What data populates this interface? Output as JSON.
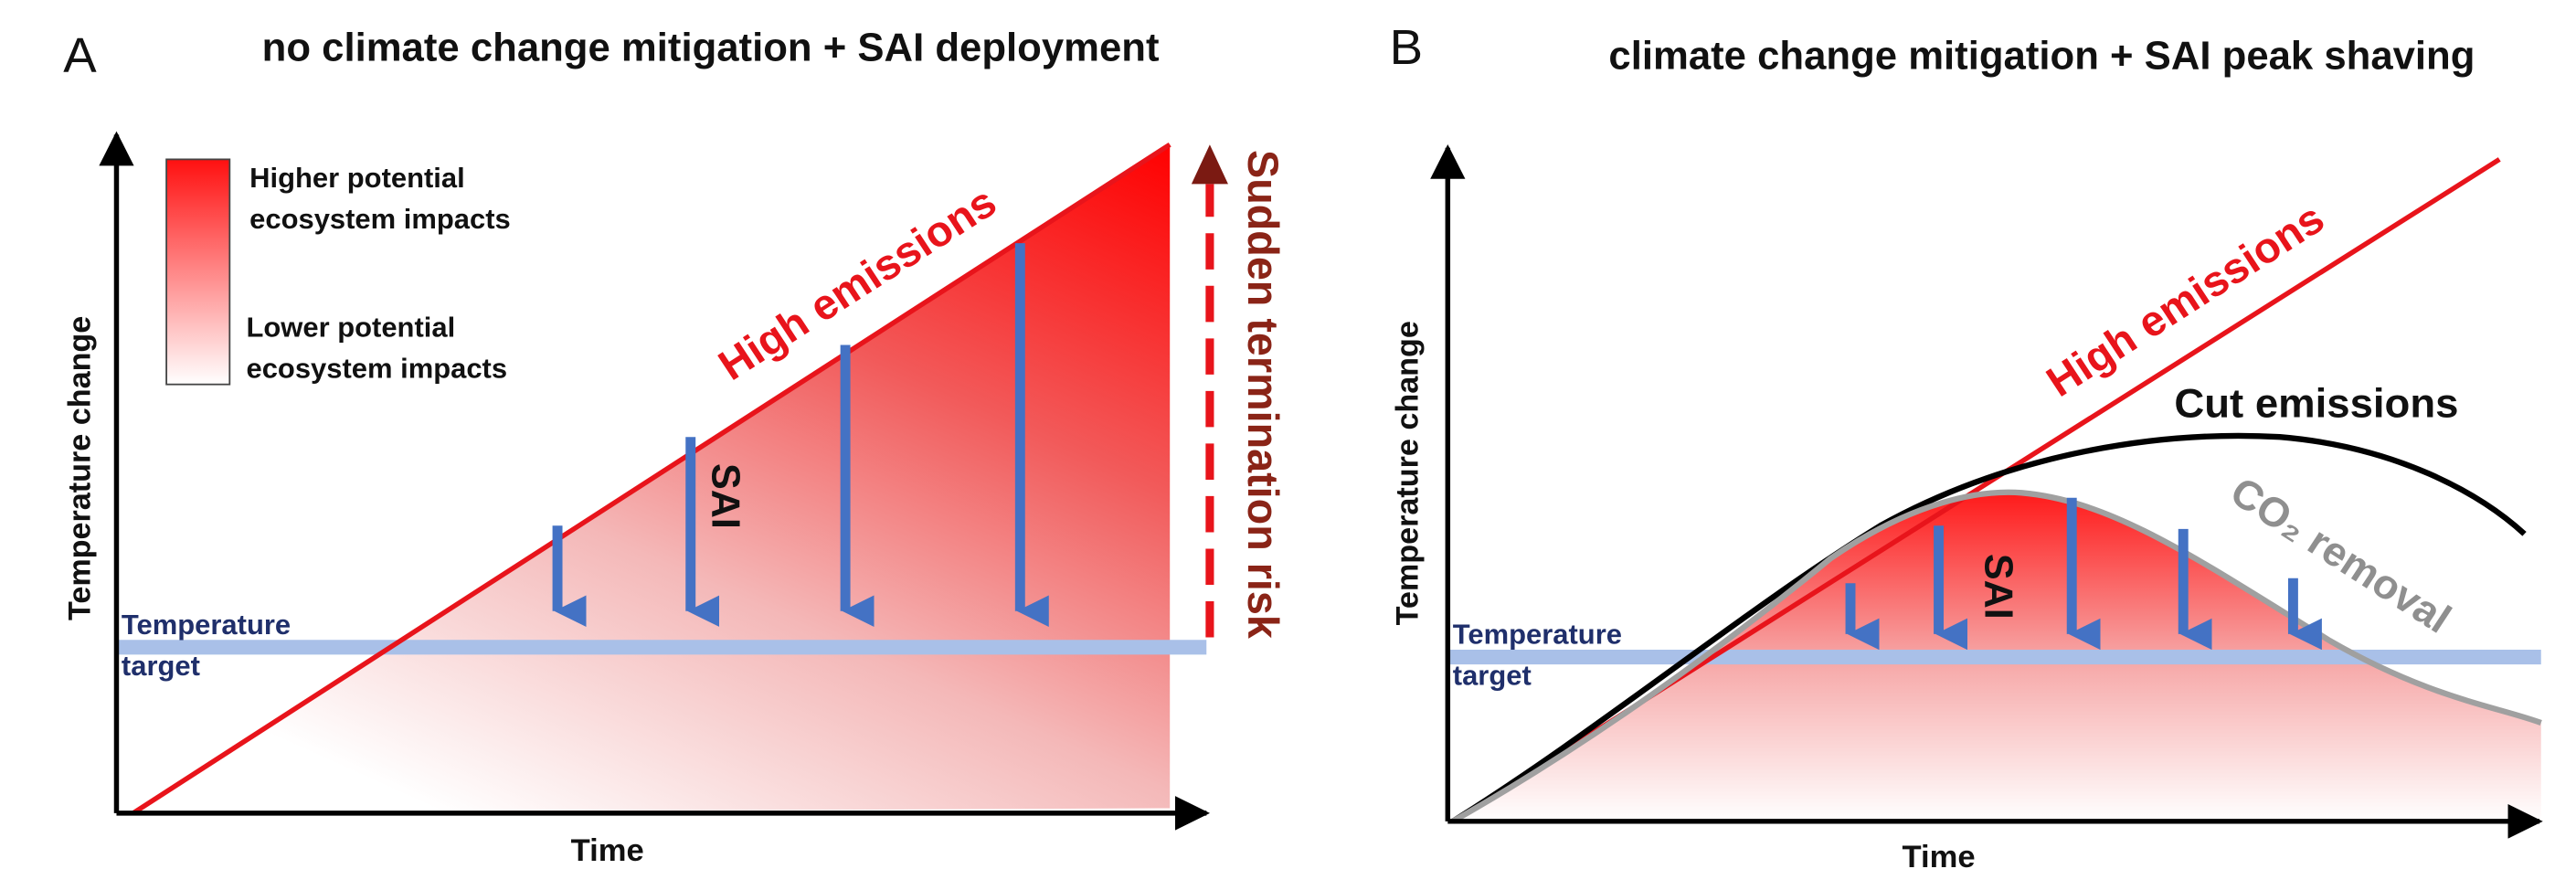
{
  "panels": [
    {
      "letter": "A",
      "title": "no climate change mitigation + SAI deployment",
      "y_axis_label": "Temperature change",
      "x_axis_label": "Time",
      "legend": {
        "high": [
          "Higher potential",
          "ecosystem impacts"
        ],
        "low": [
          "Lower potential",
          "ecosystem impacts"
        ]
      },
      "high_emissions": "High emissions",
      "sai": "SAI",
      "termination": "Sudden termination risk",
      "target": [
        "Temperature",
        "target"
      ]
    },
    {
      "letter": "B",
      "title": "climate change mitigation + SAI peak shaving",
      "y_axis_label": "Temperature change",
      "x_axis_label": "Time",
      "high_emissions": "High emissions",
      "cut_emissions": "Cut emissions",
      "co2_removal": "CO₂ removal",
      "sai": "SAI",
      "target": [
        "Temperature",
        "target"
      ]
    }
  ]
}
